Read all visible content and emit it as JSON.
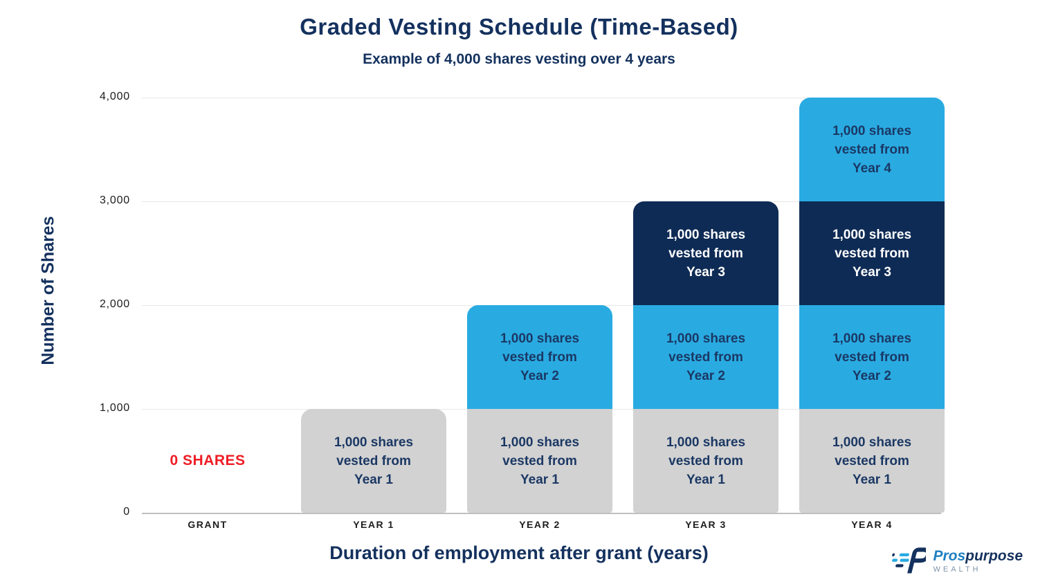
{
  "page": {
    "background": "#ffffff"
  },
  "header": {
    "title": "Graded Vesting Schedule (Time-Based)",
    "subtitle": "Example of 4,000 shares vesting over 4 years"
  },
  "axes": {
    "y_label": "Number of Shares",
    "x_label": "Duration of employment after grant (years)"
  },
  "chart_data": {
    "type": "bar",
    "stacked": true,
    "title": "Graded Vesting Schedule (Time-Based)",
    "subtitle": "Example of 4,000 shares vesting over 4 years",
    "xlabel": "Duration of employment after grant (years)",
    "ylabel": "Number of Shares",
    "ylim": [
      0,
      4000
    ],
    "grid": "horizontal-only",
    "legend": "none",
    "yticks": [
      {
        "value": 4000,
        "label": "4,000"
      },
      {
        "value": 3000,
        "label": "3,000"
      },
      {
        "value": 2000,
        "label": "2,000"
      },
      {
        "value": 1000,
        "label": "1,000"
      },
      {
        "value": 0,
        "label": "0"
      }
    ],
    "categories": [
      "GRANT",
      "YEAR 1",
      "YEAR 2",
      "YEAR 3",
      "YEAR 4"
    ],
    "palette": {
      "year1_gray": "#d2d2d2",
      "year2_blue": "#29abe2",
      "year3_navy": "#0e2b55",
      "year4_blue": "#29abe2",
      "label_navy": "#1b3864",
      "label_white": "#ffffff",
      "annotation_red": "#ee1c25"
    },
    "bars": [
      {
        "category": "GRANT",
        "total": 0,
        "segments": [],
        "annotation": {
          "text": "0 SHARES",
          "color": "#ee1c25"
        }
      },
      {
        "category": "YEAR 1",
        "total": 1000,
        "segments": [
          {
            "value": 1000,
            "label": "1,000 shares\nvested from\nYear 1",
            "color": "#d2d2d2",
            "text_color": "#1b3864"
          }
        ]
      },
      {
        "category": "YEAR 2",
        "total": 2000,
        "segments": [
          {
            "value": 1000,
            "label": "1,000 shares\nvested from\nYear 1",
            "color": "#d2d2d2",
            "text_color": "#1b3864"
          },
          {
            "value": 1000,
            "label": "1,000 shares\nvested from\nYear 2",
            "color": "#29abe2",
            "text_color": "#1b3864"
          }
        ]
      },
      {
        "category": "YEAR 3",
        "total": 3000,
        "segments": [
          {
            "value": 1000,
            "label": "1,000 shares\nvested from\nYear 1",
            "color": "#d2d2d2",
            "text_color": "#1b3864"
          },
          {
            "value": 1000,
            "label": "1,000 shares\nvested from\nYear 2",
            "color": "#29abe2",
            "text_color": "#1b3864"
          },
          {
            "value": 1000,
            "label": "1,000 shares\nvested from\nYear 3",
            "color": "#0e2b55",
            "text_color": "#ffffff"
          }
        ]
      },
      {
        "category": "YEAR 4",
        "total": 4000,
        "segments": [
          {
            "value": 1000,
            "label": "1,000 shares\nvested from\nYear 1",
            "color": "#d2d2d2",
            "text_color": "#1b3864"
          },
          {
            "value": 1000,
            "label": "1,000 shares\nvested from\nYear 2",
            "color": "#29abe2",
            "text_color": "#1b3864"
          },
          {
            "value": 1000,
            "label": "1,000 shares\nvested from\nYear 3",
            "color": "#0e2b55",
            "text_color": "#ffffff"
          },
          {
            "value": 1000,
            "label": "1,000 shares\nvested from\nYear 4",
            "color": "#29abe2",
            "text_color": "#1b3864"
          }
        ]
      }
    ]
  },
  "branding": {
    "name_primary": "Pros",
    "name_secondary": "purpose",
    "tagline": "WEALTH",
    "primary_color": "#1e7fc2",
    "secondary_color": "#14315e"
  }
}
